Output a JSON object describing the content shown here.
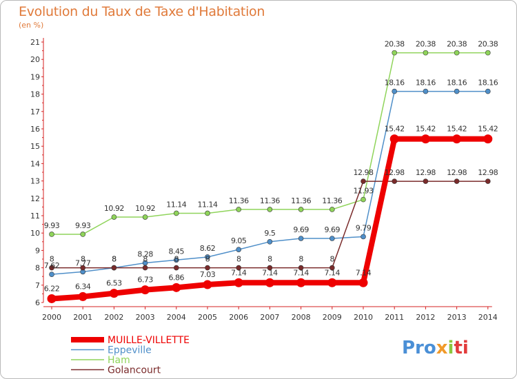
{
  "title": "Evolution du Taux de Taxe d'Habitation",
  "unit_label": "(en %)",
  "logo_text": "Proxiti",
  "chart_data": {
    "type": "line",
    "x": [
      "2000",
      "2001",
      "2002",
      "2003",
      "2004",
      "2005",
      "2006",
      "2007",
      "2008",
      "2009",
      "2010",
      "2011",
      "2012",
      "2013",
      "2014"
    ],
    "ylim": [
      6,
      21
    ],
    "yticks": [
      6,
      7,
      8,
      9,
      10,
      11,
      12,
      13,
      14,
      15,
      16,
      17,
      18,
      19,
      20,
      21
    ],
    "grid": false,
    "legend_position": "bottom-left",
    "series": [
      {
        "name": "Ham",
        "color": "#8fd45a",
        "values": [
          9.93,
          9.93,
          10.92,
          10.92,
          11.14,
          11.14,
          11.36,
          11.36,
          11.36,
          11.36,
          11.93,
          20.38,
          20.38,
          20.38,
          20.38
        ],
        "labels": [
          "9.93",
          "9.93",
          "10.92",
          "10.92",
          "11.14",
          "11.14",
          "11.36",
          "11.36",
          "11.36",
          "11.36",
          "11.93",
          "20.38",
          "20.38",
          "20.38",
          "20.38"
        ]
      },
      {
        "name": "Eppeville",
        "color": "#4f8fc9",
        "values": [
          7.62,
          7.77,
          8,
          8.28,
          8.45,
          8.62,
          9.05,
          9.5,
          9.69,
          9.69,
          9.79,
          18.16,
          18.16,
          18.16,
          18.16
        ],
        "labels": [
          "7.62",
          "7.77",
          "8",
          "8.28",
          "8.45",
          "8.62",
          "9.05",
          "9.5",
          "9.69",
          "9.69",
          "9.79",
          "18.16",
          "18.16",
          "18.16",
          "18.16"
        ]
      },
      {
        "name": "Golancourt",
        "color": "#7a2b2b",
        "values": [
          8,
          8,
          8,
          8,
          8,
          8,
          8,
          8,
          8,
          8,
          12.98,
          12.98,
          12.98,
          12.98,
          12.98
        ],
        "labels": [
          "8",
          "8",
          "8",
          "8",
          "8",
          "8",
          "8",
          "8",
          "8",
          "8",
          "12.98",
          "12.98",
          "12.98",
          "12.98",
          "12.98"
        ]
      },
      {
        "name": "MUILLE-VILLETTE",
        "color": "#ee0000",
        "values": [
          6.22,
          6.34,
          6.53,
          6.73,
          6.86,
          7.03,
          7.14,
          7.14,
          7.14,
          7.14,
          7.14,
          15.42,
          15.42,
          15.42,
          15.42
        ],
        "labels": [
          "6.22",
          "6.34",
          "6.53",
          "6.73",
          "6.86",
          "7.03",
          "7.14",
          "7.14",
          "7.14",
          "7.14",
          "7.14",
          "15.42",
          "15.42",
          "15.42",
          "15.42"
        ]
      }
    ],
    "legend_order": [
      "MUILLE-VILLETTE",
      "Eppeville",
      "Ham",
      "Golancourt"
    ]
  }
}
